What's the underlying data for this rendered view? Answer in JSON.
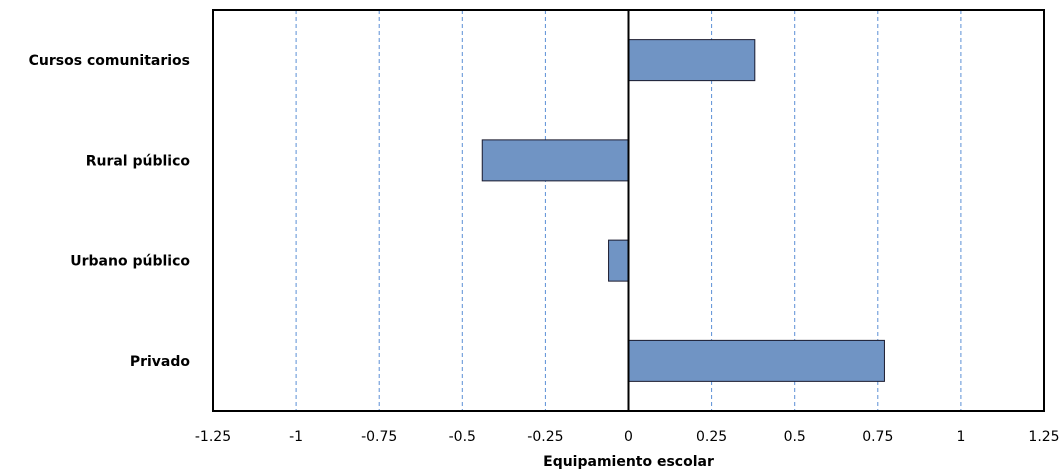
{
  "chart_data": {
    "type": "bar",
    "orientation": "horizontal",
    "categories": [
      "Cursos comunitarios",
      "Rural público",
      "Urbano público",
      "Privado"
    ],
    "values": [
      0.38,
      -0.44,
      -0.06,
      0.77
    ],
    "xlabel": "Equipamiento escolar",
    "ylabel": "",
    "xlim": [
      -1.25,
      1.25
    ],
    "xticks": [
      -1.25,
      -1,
      -0.75,
      -0.5,
      -0.25,
      0,
      0.25,
      0.5,
      0.75,
      1,
      1.25
    ],
    "xtick_labels": [
      "-1.25",
      "-1",
      "-0.75",
      "-0.5",
      "-0.25",
      "0",
      "0.25",
      "0.5",
      "0.75",
      "1",
      "1.25"
    ],
    "grid": "vertical dashed",
    "legend": "none",
    "colors": {
      "bar_fill": "#7094c4",
      "bar_stroke": "#1a1a2e",
      "grid": "#5b8fd6",
      "axis": "#000000"
    }
  }
}
